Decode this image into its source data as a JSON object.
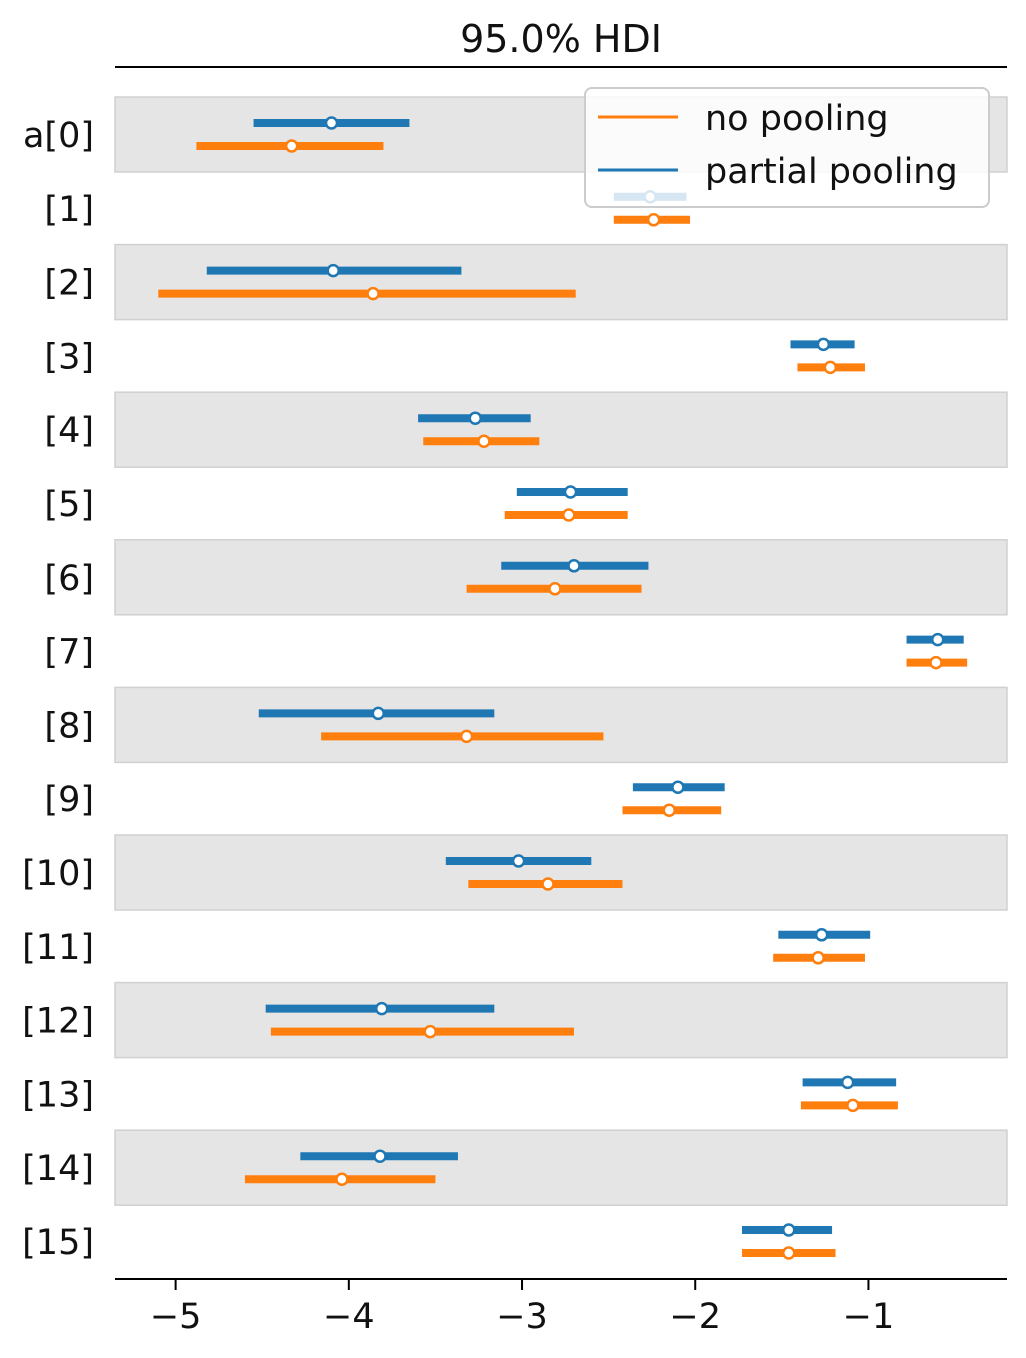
{
  "chart_data": {
    "type": "forest",
    "title": "95.0% HDI",
    "xlabel": "",
    "ylabel": "",
    "xlim": [
      -5.35,
      -0.2
    ],
    "x_ticks": [
      -5,
      -4,
      -3,
      -2,
      -1
    ],
    "x_tick_labels": [
      "−5",
      "−4",
      "−3",
      "−2",
      "−1"
    ],
    "grid": false,
    "legend_position": "top-right",
    "legend": [
      {
        "label": "no pooling",
        "series": "no_pooling"
      },
      {
        "label": "partial pooling",
        "series": "partial_pooling"
      }
    ],
    "row_labels": [
      "a[0]",
      "[1]",
      "[2]",
      "[3]",
      "[4]",
      "[5]",
      "[6]",
      "[7]",
      "[8]",
      "[9]",
      "[10]",
      "[11]",
      "[12]",
      "[13]",
      "[14]",
      "[15]"
    ],
    "series": [
      {
        "key": "partial_pooling",
        "name": "partial pooling",
        "color": "#1f77b4",
        "intervals": [
          {
            "low": -4.55,
            "mid": -4.1,
            "high": -3.65
          },
          {
            "low": -2.47,
            "mid": -2.26,
            "high": -2.05
          },
          {
            "low": -4.82,
            "mid": -4.09,
            "high": -3.35
          },
          {
            "low": -1.45,
            "mid": -1.26,
            "high": -1.08
          },
          {
            "low": -3.6,
            "mid": -3.27,
            "high": -2.95
          },
          {
            "low": -3.03,
            "mid": -2.72,
            "high": -2.39
          },
          {
            "low": -3.12,
            "mid": -2.7,
            "high": -2.27
          },
          {
            "low": -0.78,
            "mid": -0.6,
            "high": -0.45
          },
          {
            "low": -4.52,
            "mid": -3.83,
            "high": -3.16
          },
          {
            "low": -2.36,
            "mid": -2.1,
            "high": -1.83
          },
          {
            "low": -3.44,
            "mid": -3.02,
            "high": -2.6
          },
          {
            "low": -1.52,
            "mid": -1.27,
            "high": -0.99
          },
          {
            "low": -4.48,
            "mid": -3.81,
            "high": -3.16
          },
          {
            "low": -1.38,
            "mid": -1.12,
            "high": -0.84
          },
          {
            "low": -4.28,
            "mid": -3.82,
            "high": -3.37
          },
          {
            "low": -1.73,
            "mid": -1.46,
            "high": -1.21
          }
        ]
      },
      {
        "key": "no_pooling",
        "name": "no pooling",
        "color": "#ff7f0e",
        "intervals": [
          {
            "low": -4.88,
            "mid": -4.33,
            "high": -3.8
          },
          {
            "low": -2.47,
            "mid": -2.24,
            "high": -2.03
          },
          {
            "low": -5.1,
            "mid": -3.86,
            "high": -2.69
          },
          {
            "low": -1.41,
            "mid": -1.22,
            "high": -1.02
          },
          {
            "low": -3.57,
            "mid": -3.22,
            "high": -2.9
          },
          {
            "low": -3.1,
            "mid": -2.73,
            "high": -2.39
          },
          {
            "low": -3.32,
            "mid": -2.81,
            "high": -2.31
          },
          {
            "low": -0.78,
            "mid": -0.61,
            "high": -0.43
          },
          {
            "low": -4.16,
            "mid": -3.32,
            "high": -2.53
          },
          {
            "low": -2.42,
            "mid": -2.15,
            "high": -1.85
          },
          {
            "low": -3.31,
            "mid": -2.85,
            "high": -2.42
          },
          {
            "low": -1.55,
            "mid": -1.29,
            "high": -1.02
          },
          {
            "low": -4.45,
            "mid": -3.53,
            "high": -2.7
          },
          {
            "low": -1.39,
            "mid": -1.09,
            "high": -0.83
          },
          {
            "low": -4.6,
            "mid": -4.04,
            "high": -3.5
          },
          {
            "low": -1.73,
            "mid": -1.46,
            "high": -1.19
          }
        ]
      }
    ]
  }
}
